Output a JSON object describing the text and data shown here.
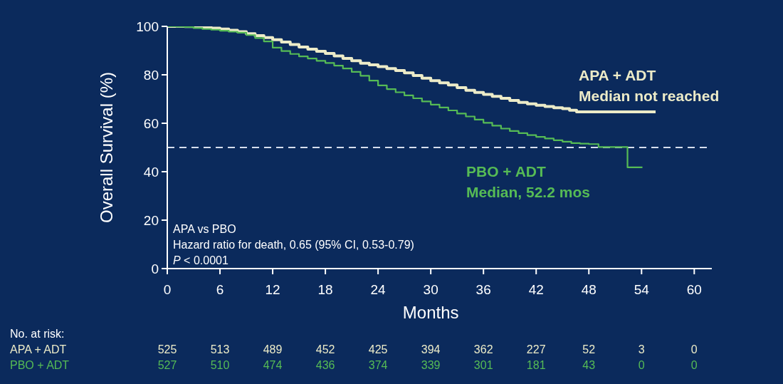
{
  "chart_data": {
    "type": "step",
    "xlabel": "Months",
    "ylabel": "Overall Survival (%)",
    "xlim": [
      0,
      62
    ],
    "xticks": [
      0,
      6,
      12,
      18,
      24,
      30,
      36,
      42,
      48,
      54,
      60
    ],
    "ylim": [
      0,
      100
    ],
    "yticks": [
      0,
      20,
      40,
      60,
      80,
      100
    ],
    "series": [
      {
        "name": "APA + ADT",
        "color": "#ecebc8",
        "x": [
          0,
          1,
          2,
          3,
          4,
          5,
          6,
          7,
          8,
          9,
          10,
          11,
          12,
          13,
          14,
          15,
          16,
          17,
          18,
          19,
          20,
          21,
          22,
          23,
          24,
          25,
          26,
          27,
          28,
          29,
          30,
          31,
          32,
          33,
          34,
          35,
          36,
          37,
          38,
          39,
          40,
          41,
          42,
          43,
          44,
          45,
          45.8,
          46.6,
          55.6
        ],
        "values": [
          100,
          100,
          99.9,
          99.8,
          99.6,
          99.3,
          98.9,
          98.4,
          97.8,
          97,
          96.2,
          95.4,
          94.5,
          93.5,
          92.5,
          91.5,
          90.6,
          89.7,
          88.8,
          87.8,
          86.8,
          85.8,
          84.8,
          84.1,
          83.4,
          82.6,
          81.8,
          80.8,
          79.7,
          78.6,
          77.6,
          76.7,
          75.8,
          74.7,
          73.6,
          72.7,
          71.9,
          71.1,
          70.3,
          69.4,
          68.6,
          68,
          67.4,
          66.9,
          66.4,
          66,
          65.4,
          64.7,
          64.7
        ]
      },
      {
        "name": "PBO + ADT",
        "color": "#56bb55",
        "x": [
          0,
          1,
          2,
          3,
          4,
          5,
          6,
          7,
          8,
          9,
          10,
          11,
          12,
          13,
          14,
          15,
          16,
          17,
          18,
          19,
          20,
          21,
          22,
          23,
          24,
          25,
          26,
          27,
          28,
          29,
          30,
          31,
          32,
          33,
          34,
          35,
          36,
          37,
          38,
          39,
          40,
          41,
          42,
          43,
          44,
          45,
          46,
          47,
          48,
          49.1,
          52.4,
          52.4,
          54.1
        ],
        "values": [
          100,
          99.9,
          99.7,
          99.3,
          98.9,
          98.6,
          98.2,
          97.8,
          97.4,
          96.4,
          95.2,
          93.8,
          91.2,
          89.8,
          88.6,
          87.6,
          86.7,
          85.8,
          84.9,
          83.8,
          82.6,
          81.2,
          79.6,
          77.6,
          75.6,
          74.1,
          72.8,
          71.5,
          70.3,
          69,
          67.7,
          66.5,
          65.3,
          64,
          62.8,
          61.5,
          60.2,
          59,
          57.8,
          56.8,
          55.9,
          55.1,
          54.4,
          53.7,
          53,
          52.4,
          51.8,
          51.6,
          51.4,
          50.2,
          50.2,
          41.8,
          41.8
        ]
      }
    ],
    "ref_lines": [
      {
        "axis": "y",
        "value": 50,
        "color": "#d6deee",
        "line_style": "dashed"
      }
    ],
    "annotations": [
      "Median not reached",
      "Median, 52.2 mos",
      "APA vs PBO",
      "Hazard ratio for death, 0.65 (95% CI, 0.53-0.79)",
      "P < 0.0001",
      "No. at risk:",
      "525",
      "513",
      "489",
      "452",
      "425",
      "394",
      "362",
      "227",
      "52",
      "3",
      "0",
      "527",
      "510",
      "474",
      "436",
      "374",
      "339",
      "301",
      "181",
      "43",
      "0",
      "0"
    ]
  }
}
